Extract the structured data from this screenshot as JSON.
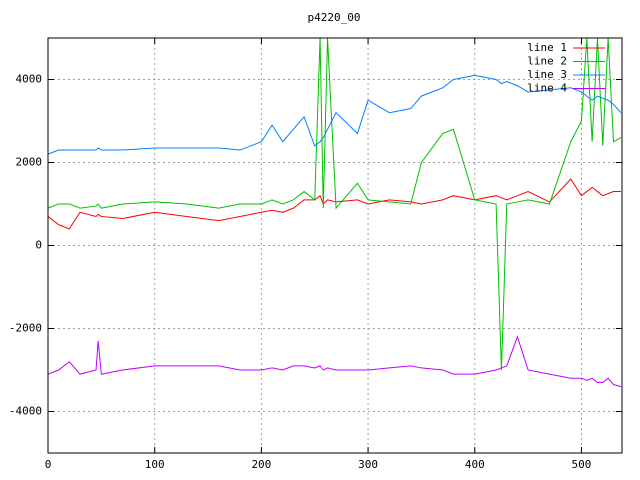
{
  "chart_data": {
    "type": "line",
    "title": "p4220_00",
    "x": [
      0,
      10,
      20,
      30,
      45,
      47,
      50,
      70,
      100,
      130,
      160,
      180,
      200,
      210,
      220,
      230,
      240,
      250,
      255,
      258,
      262,
      270,
      290,
      300,
      320,
      340,
      350,
      370,
      380,
      400,
      420,
      425,
      430,
      440,
      450,
      470,
      490,
      500,
      505,
      510,
      515,
      520,
      525,
      530,
      537
    ],
    "series": [
      {
        "name": "line 1",
        "color": "#ff0000",
        "values": [
          700,
          500,
          400,
          800,
          700,
          750,
          700,
          650,
          800,
          700,
          600,
          700,
          800,
          850,
          800,
          900,
          1100,
          1100,
          1200,
          1000,
          1100,
          1050,
          1100,
          1000,
          1100,
          1050,
          1000,
          1100,
          1200,
          1100,
          1200,
          1150,
          1100,
          1200,
          1300,
          1050,
          1600,
          1200,
          1300,
          1400,
          1300,
          1200,
          1250,
          1300,
          1300
        ]
      },
      {
        "name": "line 2",
        "color": "#00c000",
        "values": [
          900,
          1000,
          1000,
          900,
          950,
          1000,
          900,
          1000,
          1050,
          1000,
          900,
          1000,
          1000,
          1100,
          1000,
          1100,
          1300,
          1100,
          5000,
          900,
          5000,
          900,
          1500,
          1100,
          1050,
          1000,
          2000,
          2700,
          2800,
          1100,
          1000,
          -3000,
          1000,
          1050,
          1100,
          1000,
          2500,
          3000,
          5000,
          2500,
          5000,
          2400,
          5000,
          2500,
          2600
        ]
      },
      {
        "name": "line 3",
        "color": "#0080ff",
        "values": [
          2200,
          2300,
          2300,
          2300,
          2300,
          2350,
          2300,
          2300,
          2350,
          2350,
          2350,
          2300,
          2500,
          2900,
          2500,
          2800,
          3100,
          2400,
          2500,
          2600,
          2800,
          3200,
          2700,
          3500,
          3200,
          3300,
          3600,
          3800,
          4000,
          4100,
          4000,
          3900,
          3950,
          3850,
          3700,
          3750,
          3800,
          3700,
          3600,
          3500,
          3600,
          3550,
          3500,
          3400,
          3200
        ]
      },
      {
        "name": "line 4",
        "color": "#c000ff",
        "values": [
          -3100,
          -3000,
          -2800,
          -3100,
          -3000,
          -2300,
          -3100,
          -3000,
          -2900,
          -2900,
          -2900,
          -3000,
          -3000,
          -2950,
          -3000,
          -2900,
          -2900,
          -2950,
          -2900,
          -3000,
          -2950,
          -3000,
          -3000,
          -3000,
          -2950,
          -2900,
          -2950,
          -3000,
          -3100,
          -3100,
          -3000,
          -2950,
          -2900,
          -2200,
          -3000,
          -3100,
          -3200,
          -3200,
          -3250,
          -3200,
          -3300,
          -3300,
          -3200,
          -3350,
          -3400
        ]
      }
    ],
    "xlim": [
      0,
      538
    ],
    "xticks": [
      0,
      100,
      200,
      300,
      400,
      500
    ],
    "ylim": [
      -5000,
      5000
    ],
    "yticks": [
      -4000,
      -2000,
      0,
      2000,
      4000
    ],
    "grid": true,
    "legend": "top-right"
  }
}
